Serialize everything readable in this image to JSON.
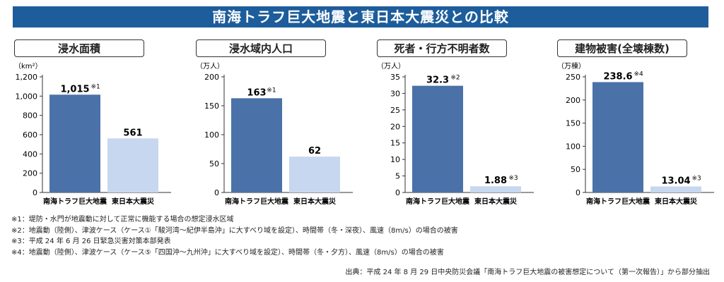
{
  "banner_title": "南海トラフ巨大地震と東日本大震災との比較",
  "colors": {
    "banner": "#1d5d9b",
    "bar_nankai": "#4a72a8",
    "bar_higashi": "#c7d7ef"
  },
  "chart_data": [
    {
      "type": "bar",
      "title": "浸水面積",
      "ylabel": "（km²）",
      "categories": [
        "南海トラフ巨大地震",
        "東日本大震災"
      ],
      "values": [
        1015,
        561
      ],
      "value_labels": [
        "1,015",
        "561"
      ],
      "notes": [
        "※1",
        ""
      ],
      "ylim": [
        0,
        1200
      ],
      "yticks": [
        0,
        200,
        400,
        600,
        800,
        1000,
        1200
      ],
      "ytick_labels": [
        "0",
        "200",
        "400",
        "600",
        "800",
        "1,000",
        "1,200"
      ],
      "grid": false
    },
    {
      "type": "bar",
      "title": "浸水域内人口",
      "ylabel": "（万人）",
      "categories": [
        "南海トラフ巨大地震",
        "東日本大震災"
      ],
      "values": [
        163,
        62
      ],
      "value_labels": [
        "163",
        "62"
      ],
      "notes": [
        "※1",
        ""
      ],
      "ylim": [
        0,
        200
      ],
      "yticks": [
        0,
        50,
        100,
        150,
        200
      ],
      "ytick_labels": [
        "0",
        "50",
        "100",
        "150",
        "200"
      ],
      "grid": false
    },
    {
      "type": "bar",
      "title": "死者・行方不明者数",
      "ylabel": "（万人）",
      "categories": [
        "南海トラフ巨大地震",
        "東日本大震災"
      ],
      "values": [
        32.3,
        1.88
      ],
      "value_labels": [
        "32.3",
        "1.88"
      ],
      "notes": [
        "※2",
        "※3"
      ],
      "ylim": [
        0,
        35
      ],
      "yticks": [
        0,
        5,
        10,
        15,
        20,
        25,
        30,
        35
      ],
      "ytick_labels": [
        "0",
        "5",
        "10",
        "15",
        "20",
        "25",
        "30",
        "35"
      ],
      "grid": false
    },
    {
      "type": "bar",
      "title": "建物被害(全壊棟数)",
      "ylabel": "（万棟）",
      "categories": [
        "南海トラフ巨大地震",
        "東日本大震災"
      ],
      "values": [
        238.6,
        13.04
      ],
      "value_labels": [
        "238.6",
        "13.04"
      ],
      "notes": [
        "※4",
        "※3"
      ],
      "ylim": [
        0,
        250
      ],
      "yticks": [
        0,
        50,
        100,
        150,
        200,
        250
      ],
      "ytick_labels": [
        "0",
        "50",
        "100",
        "150",
        "200",
        "250"
      ],
      "grid": false
    }
  ],
  "footnotes": [
    "※1：堤防・水門が地震動に対して正常に機能する場合の想定浸水区域",
    "※2：地震動（陸側）、津波ケース（ケース①「駿河湾～紀伊半島沖」に大すべり域を設定）、時間帯（冬・深夜）、風速（8m/s）の場合の被害",
    "※3：平成 24 年 6 月 26 日緊急災害対策本部発表",
    "※4：地震動（陸側）、津波ケース（ケース⑤「四国沖～九州沖」に大すべり域を設定）、時間帯（冬・夕方）、風速（8m/s）の場合の被害"
  ],
  "source": "出典：平成 24 年 8 月 29 日中央防災会議「南海トラフ巨大地震の被害想定について（第一次報告）」から部分抽出"
}
